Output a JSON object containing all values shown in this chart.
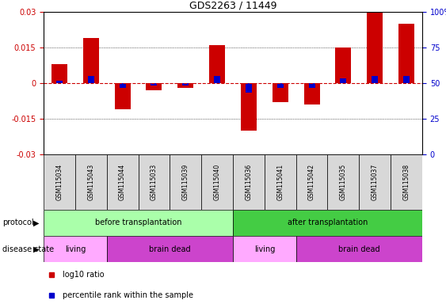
{
  "title": "GDS2263 / 11449",
  "samples": [
    "GSM115034",
    "GSM115043",
    "GSM115044",
    "GSM115033",
    "GSM115039",
    "GSM115040",
    "GSM115036",
    "GSM115041",
    "GSM115042",
    "GSM115035",
    "GSM115037",
    "GSM115038"
  ],
  "log10_ratio": [
    0.008,
    0.019,
    -0.011,
    -0.003,
    -0.002,
    0.016,
    -0.02,
    -0.008,
    -0.009,
    0.015,
    0.03,
    0.025
  ],
  "percentile_rank_offset": [
    0.001,
    0.003,
    -0.002,
    -0.001,
    -0.001,
    0.003,
    -0.004,
    -0.002,
    -0.002,
    0.002,
    0.003,
    0.003
  ],
  "ylim": [
    -0.03,
    0.03
  ],
  "yticks_left": [
    -0.03,
    -0.015,
    0,
    0.015,
    0.03
  ],
  "yticks_right": [
    0,
    25,
    50,
    75,
    100
  ],
  "bar_color_red": "#cc0000",
  "bar_color_blue": "#0000cc",
  "bar_width": 0.5,
  "zero_line_color": "#cc0000",
  "protocol_before_color": "#aaffaa",
  "protocol_after_color": "#44cc44",
  "disease_living_color": "#ffaaff",
  "disease_dead_color": "#cc44cc",
  "sample_bg_color": "#d8d8d8",
  "protocol_before_label": "before transplantation",
  "protocol_after_label": "after transplantation",
  "living_label": "living",
  "brain_dead_label": "brain dead",
  "protocol_row_label": "protocol",
  "disease_row_label": "disease state",
  "legend_red_label": "log10 ratio",
  "legend_blue_label": "percentile rank within the sample"
}
